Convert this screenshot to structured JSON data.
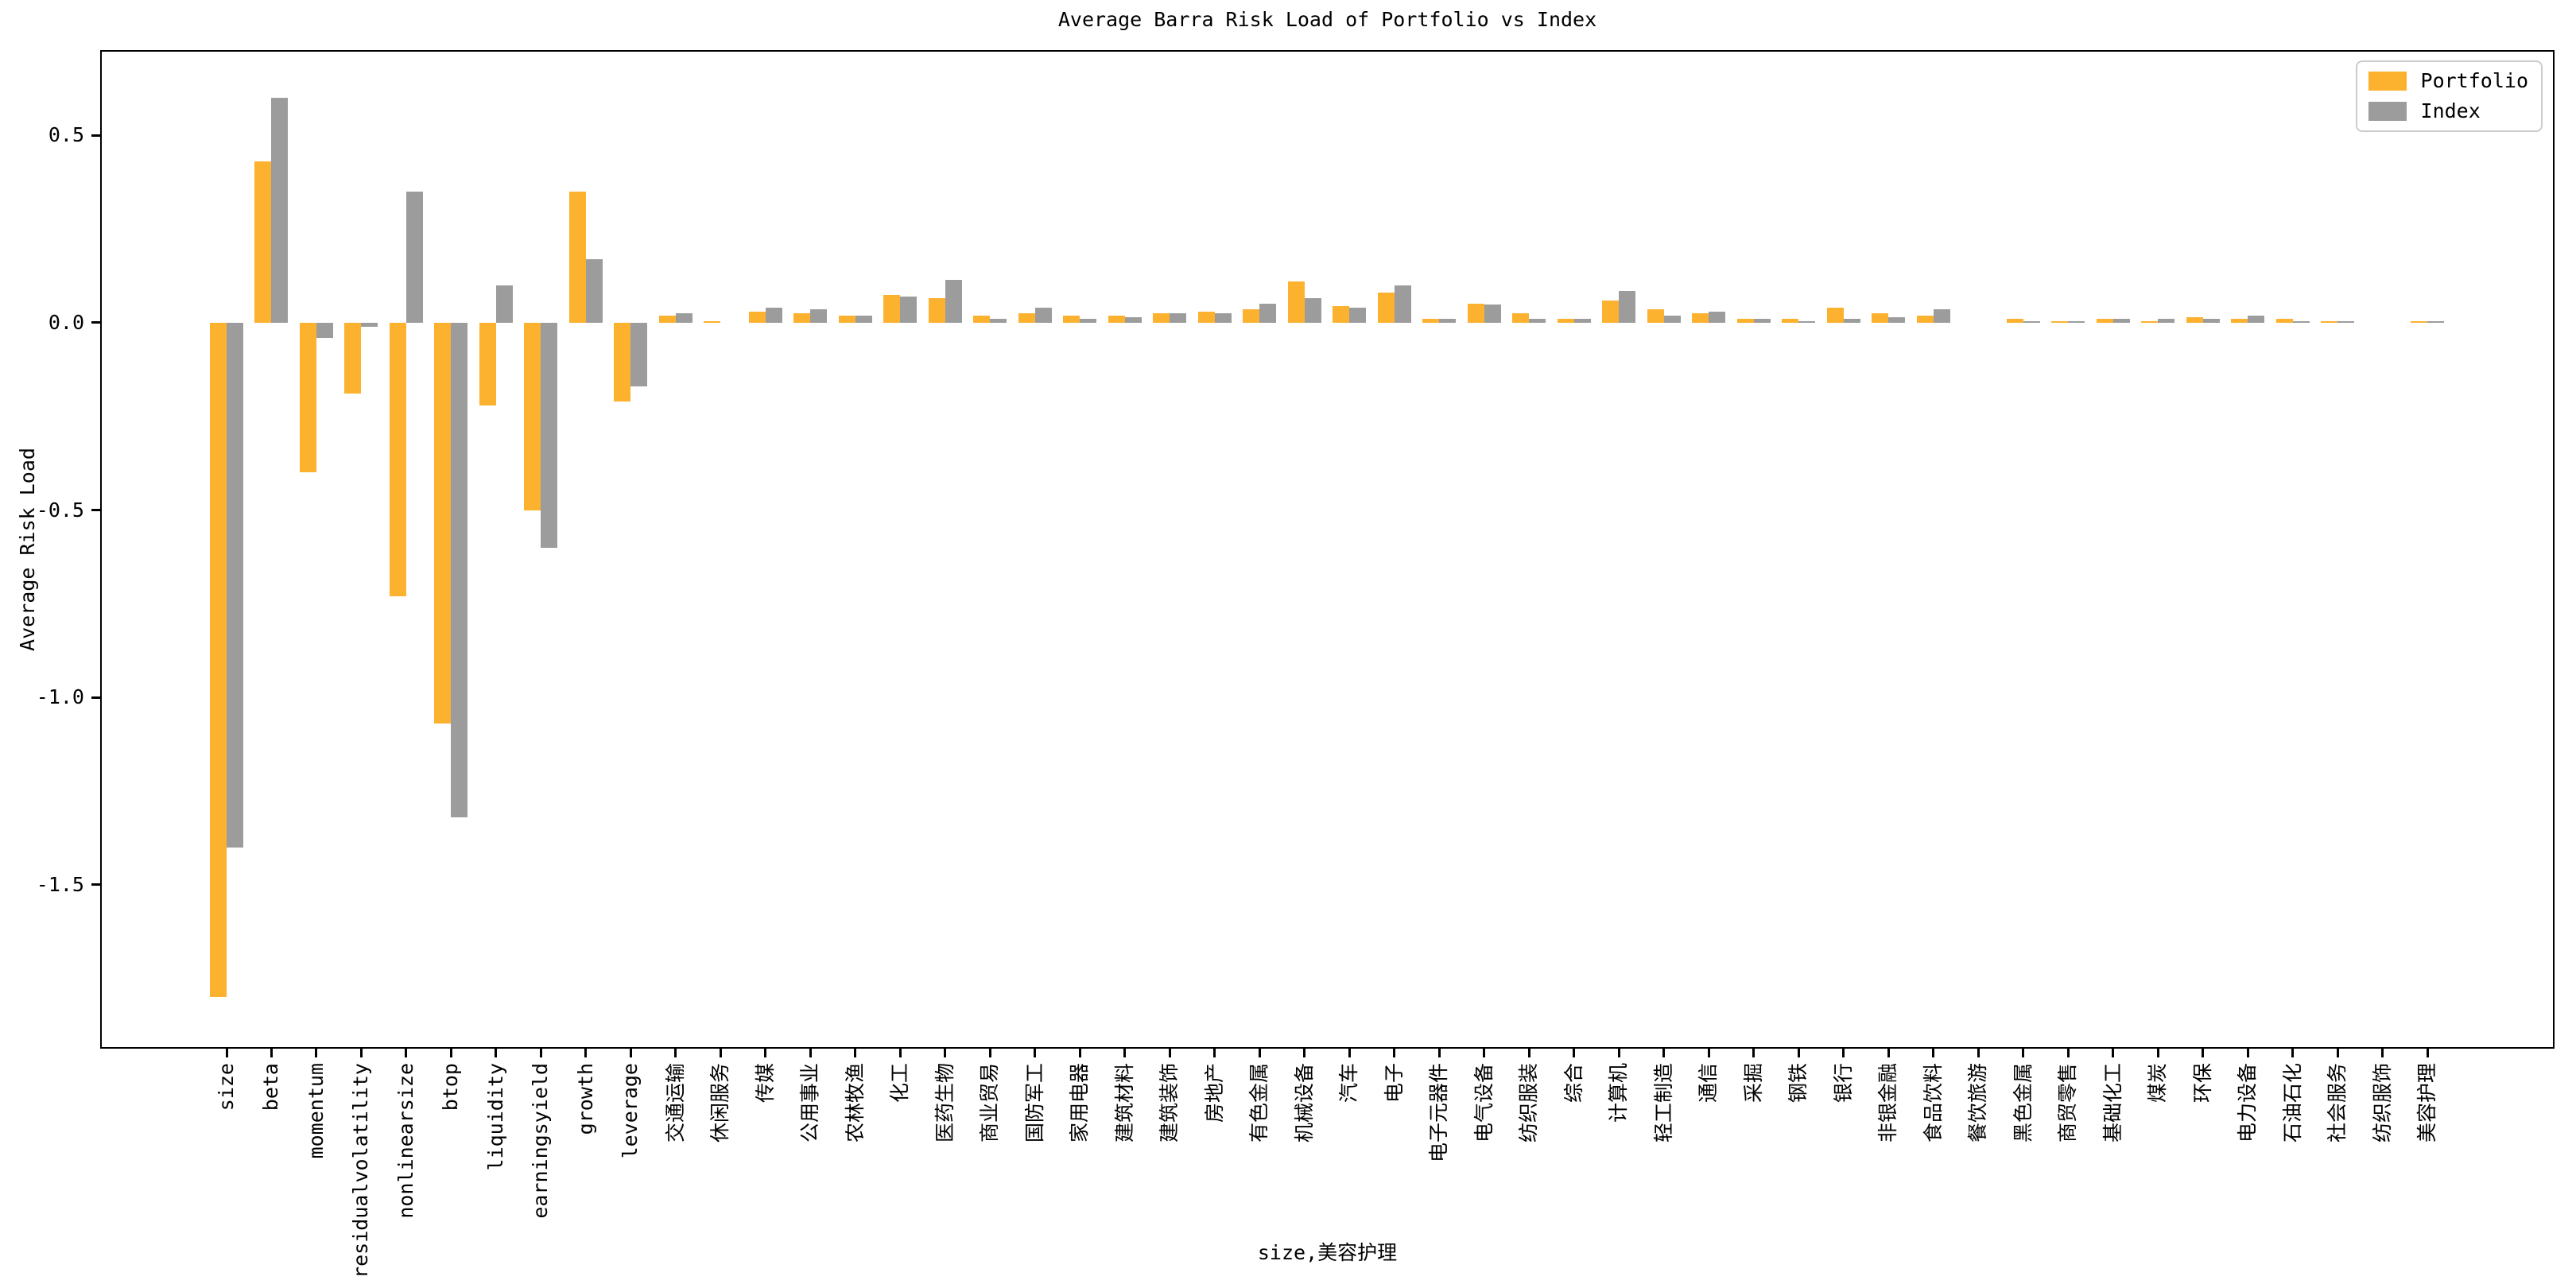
{
  "title": "Average Barra Risk Load of Portfolio vs Index",
  "colors": {
    "portfolio": "#FCB12F",
    "index": "#9C9C9C",
    "axis": "#000000"
  },
  "legend": {
    "items": [
      {
        "label": "Portfolio"
      },
      {
        "label": "Index"
      }
    ]
  },
  "chart_data": {
    "type": "bar",
    "title": "Average Barra Risk Load of Portfolio vs Index",
    "xlabel": "size,美容护理",
    "ylabel": "Average Risk Load",
    "ylim": [
      -1.938,
      0.728
    ],
    "yticks": [
      "0.5",
      "0.0",
      "-0.5",
      "-1.0",
      "-1.5"
    ],
    "ytick_values": [
      0.5,
      0.0,
      -0.5,
      -1.0,
      -1.5
    ],
    "grid": false,
    "legend_position": "upper right",
    "categories": [
      "size",
      "beta",
      "momentum",
      "residualvolatility",
      "nonlinearsize",
      "btop",
      "liquidity",
      "earningsyield",
      "growth",
      "leverage",
      "交通运输",
      "休闲服务",
      "传媒",
      "公用事业",
      "农林牧渔",
      "化工",
      "医药生物",
      "商业贸易",
      "国防军工",
      "家用电器",
      "建筑材料",
      "建筑装饰",
      "房地产",
      "有色金属",
      "机械设备",
      "汽车",
      "电子",
      "电子元器件",
      "电气设备",
      "纺织服装",
      "综合",
      "计算机",
      "轻工制造",
      "通信",
      "采掘",
      "钢铁",
      "银行",
      "非银金融",
      "食品饮料",
      "餐饮旅游",
      "黑色金属",
      "商贸零售",
      "基础化工",
      "煤炭",
      "环保",
      "电力设备",
      "石油石化",
      "社会服务",
      "纺织服饰",
      "美容护理"
    ],
    "series": [
      {
        "name": "Portfolio",
        "color": "#FCB12F",
        "values": [
          -1.8,
          0.43,
          -0.4,
          -0.19,
          -0.73,
          -1.07,
          -0.22,
          -0.5,
          0.35,
          -0.21,
          0.02,
          0.005,
          0.03,
          0.025,
          0.02,
          0.075,
          0.065,
          0.02,
          0.025,
          0.02,
          0.02,
          0.025,
          0.03,
          0.035,
          0.11,
          0.045,
          0.08,
          0.01,
          0.05,
          0.025,
          0.01,
          0.06,
          0.035,
          0.025,
          0.01,
          0.01,
          0.04,
          0.025,
          0.02,
          0.0,
          0.01,
          0.005,
          0.01,
          0.005,
          0.015,
          0.01,
          0.01,
          0.005,
          0.0,
          0.005
        ]
      },
      {
        "name": "Index",
        "color": "#9C9C9C",
        "values": [
          -1.4,
          0.6,
          -0.04,
          -0.01,
          0.35,
          -1.32,
          0.1,
          -0.6,
          0.17,
          -0.17,
          0.025,
          0.0,
          0.04,
          0.035,
          0.02,
          0.07,
          0.115,
          0.01,
          0.04,
          0.01,
          0.015,
          0.025,
          0.025,
          0.05,
          0.065,
          0.04,
          0.1,
          0.01,
          0.048,
          0.01,
          0.01,
          0.085,
          0.02,
          0.03,
          0.01,
          0.005,
          0.01,
          0.015,
          0.035,
          0.0,
          0.005,
          0.005,
          0.01,
          0.01,
          0.01,
          0.02,
          0.005,
          0.005,
          0.0,
          0.005
        ]
      }
    ]
  }
}
